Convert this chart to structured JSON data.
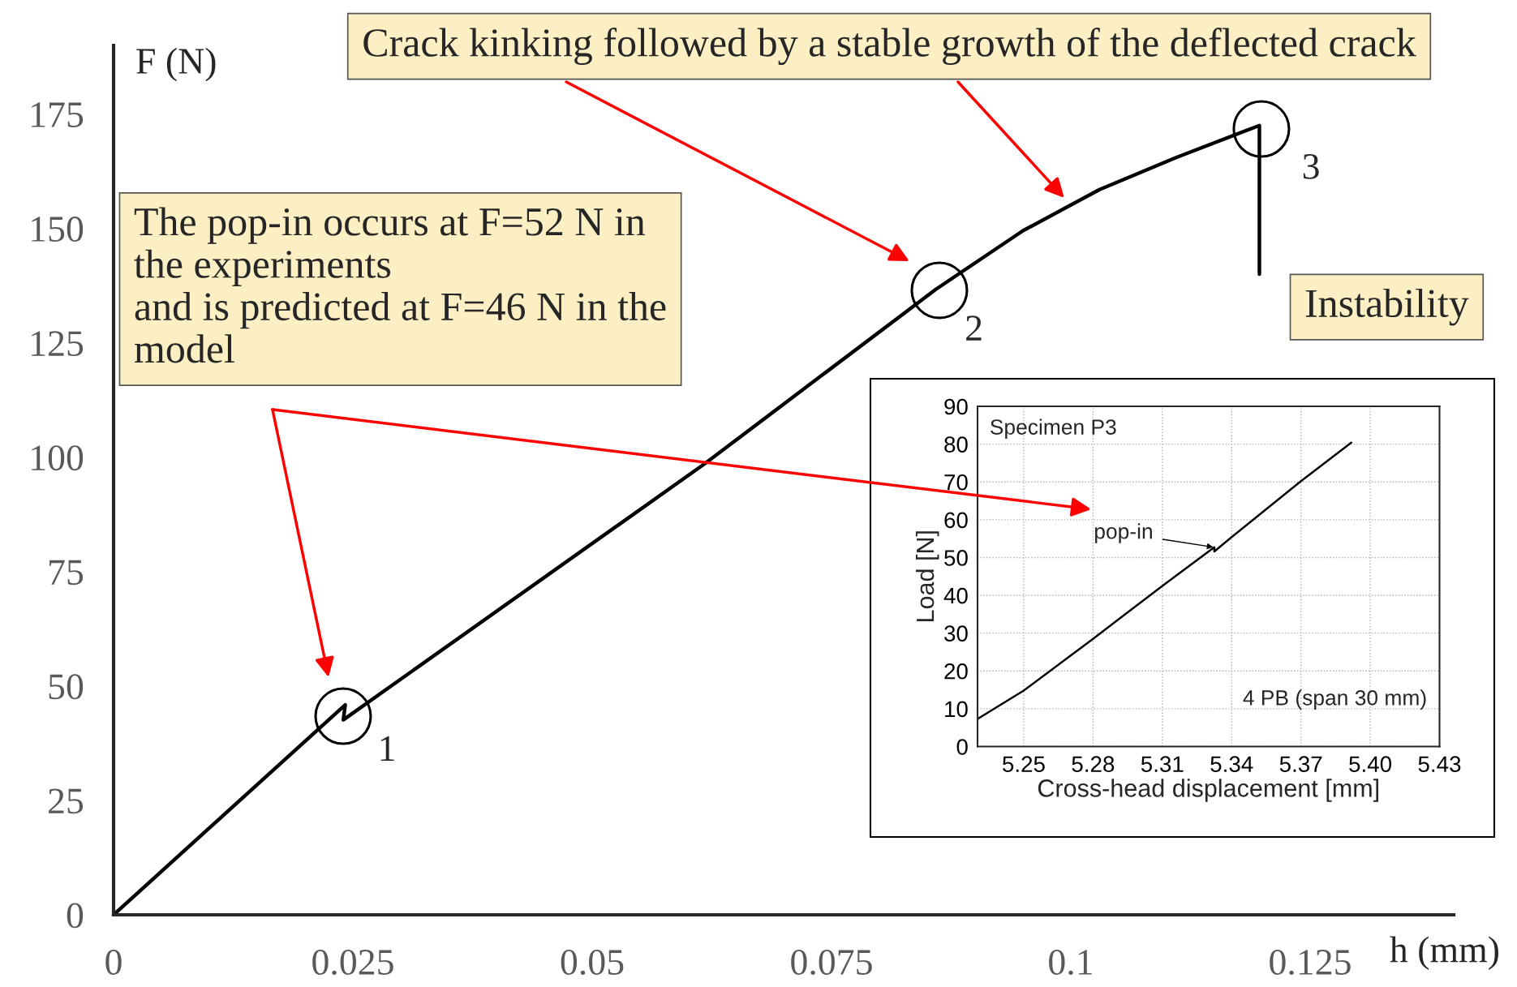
{
  "chart_data": [
    {
      "type": "line",
      "xlabel": "h (mm)",
      "ylabel": "F (N)",
      "series": [
        {
          "color": "#000000",
          "x": [
            0,
            0.0242,
            0.024,
            0.0617,
            0.0859,
            0.095,
            0.103,
            0.111,
            0.1197,
            0.1197
          ],
          "values": [
            0,
            45.9,
            42.6,
            98.5,
            136.7,
            149.5,
            158.5,
            165.5,
            172.5,
            140
          ]
        }
      ],
      "xlim": [
        0,
        0.14
      ],
      "ylim": [
        0,
        190
      ],
      "xticks": [
        0,
        0.025,
        0.05,
        0.075,
        0.1,
        0.125
      ],
      "yticks": [
        0,
        25,
        50,
        75,
        100,
        125,
        150,
        175
      ],
      "grid": false,
      "legend": false,
      "marker": "none",
      "line_style": "solid",
      "annotations": [
        "The pop-in occurs at F=52 N in\nthe experiments\nand is predicted at F=46 N in the\nmodel",
        "Crack kinking followed by a stable growth of the deflected crack",
        "Instability",
        "1",
        "2",
        "3"
      ]
    },
    {
      "type": "line",
      "xlabel": "Cross-head displacement [mm]",
      "ylabel": "Load [N]",
      "series": [
        {
          "color": "#000000",
          "x": [
            5.23,
            5.25,
            5.28,
            5.31,
            5.3325,
            5.3325,
            5.34,
            5.3698,
            5.3918
          ],
          "values": [
            7.3,
            14.8,
            28.5,
            42.5,
            52.7,
            51.6,
            55.4,
            70.1,
            80.4
          ]
        }
      ],
      "xlim": [
        5.23,
        5.43
      ],
      "ylim": [
        0,
        90
      ],
      "xticks": [
        5.25,
        5.28,
        5.31,
        5.34,
        5.37,
        {
          "value": 5.4,
          "label": "5.40"
        },
        5.43
      ],
      "yticks": [
        0,
        10,
        20,
        30,
        40,
        50,
        60,
        70,
        80,
        90
      ],
      "grid": true,
      "legend": false,
      "marker": "none",
      "line_style": "solid",
      "annotations": [
        "Specimen P3",
        "4 PB (span 30 mm)",
        {
          "text": "pop-in",
          "x": 5.3325,
          "y": 52.7
        }
      ]
    }
  ]
}
